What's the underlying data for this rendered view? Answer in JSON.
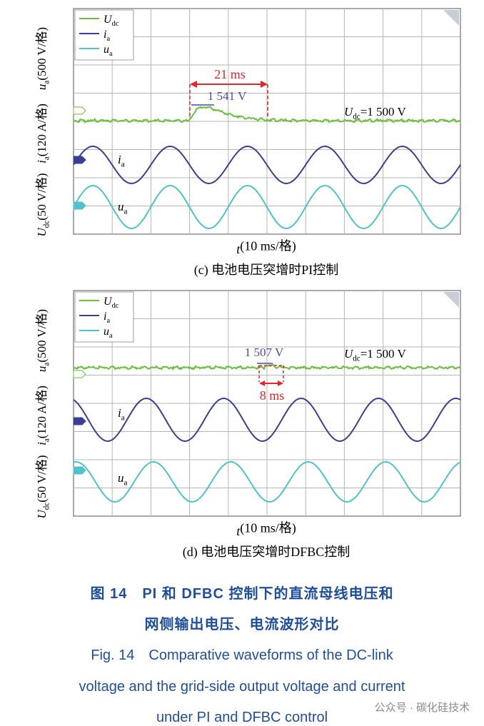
{
  "panels": [
    {
      "legend": [
        {
          "symbol": "U",
          "sub": "dc"
        },
        {
          "symbol": "i",
          "sub": "a"
        },
        {
          "symbol": "u",
          "sub": "a"
        }
      ],
      "y_labels": [
        {
          "symbol": "u",
          "sub": "a",
          "text": "(500 V/格)"
        },
        {
          "symbol": "i",
          "sub": "a",
          "text": "(120 A/格)"
        },
        {
          "symbol": "U",
          "sub": "dc",
          "text": "(50 V/格)"
        }
      ],
      "duration": "21 ms",
      "peak": "1 541 V",
      "steady": {
        "symbol": "U",
        "sub": "dc",
        "text": "=1 500 V"
      },
      "trace_labels": [
        {
          "symbol": "i",
          "sub": "a"
        },
        {
          "symbol": "u",
          "sub": "a"
        }
      ],
      "x_label": {
        "symbol": "t",
        "text": "(10 ms/格)"
      },
      "caption": "(c) 电池电压突增时PI控制"
    },
    {
      "legend": [
        {
          "symbol": "U",
          "sub": "dc"
        },
        {
          "symbol": "i",
          "sub": "a"
        },
        {
          "symbol": "u",
          "sub": "a"
        }
      ],
      "y_labels": [
        {
          "symbol": "u",
          "sub": "a",
          "text": "(500 V/格)"
        },
        {
          "symbol": "i",
          "sub": "a",
          "text": "(120 A/格)"
        },
        {
          "symbol": "U",
          "sub": "dc",
          "text": "(50 V/格)"
        }
      ],
      "duration": "8 ms",
      "peak": "1 507 V",
      "steady": {
        "symbol": "U",
        "sub": "dc",
        "text": "=1 500 V"
      },
      "trace_labels": [
        {
          "symbol": "i",
          "sub": "a"
        },
        {
          "symbol": "u",
          "sub": "a"
        }
      ],
      "x_label": {
        "symbol": "t",
        "text": "(10 ms/格)"
      },
      "caption": "(d) 电池电压突增时DFBC控制"
    }
  ],
  "figure_caption": {
    "zh": [
      "图 14　PI 和 DFBC 控制下的直流母线电压和",
      "网侧输出电压、电流波形对比"
    ],
    "en": [
      "Fig. 14　Comparative waveforms of the DC-link",
      "voltage and the grid-side output voltage and current",
      "under PI and DFBC control"
    ]
  },
  "watermark": "公众号 · 碳化硅技术"
}
